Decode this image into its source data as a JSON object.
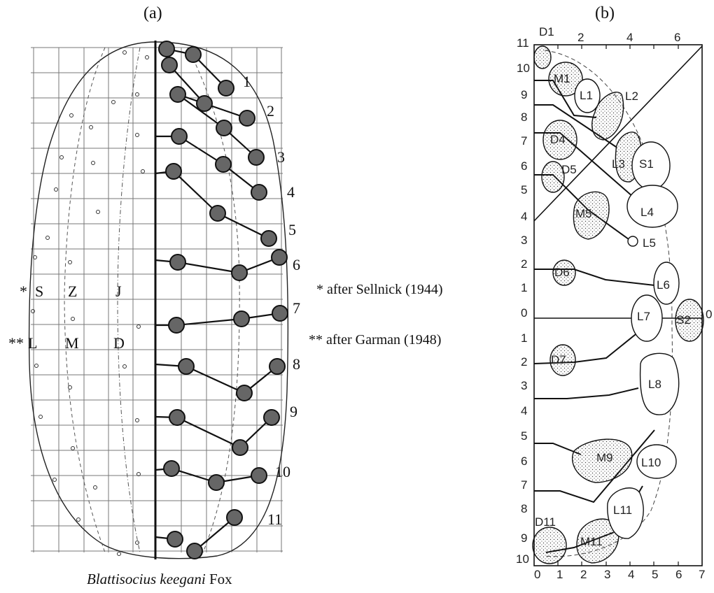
{
  "panel_a": {
    "label": "(a)",
    "row_numbers": [
      "1",
      "2",
      "3",
      "4",
      "5",
      "6",
      "7",
      "8",
      "9",
      "10",
      "11"
    ],
    "zone_row1": {
      "star": "*",
      "S": "S",
      "Z": "Z",
      "J": "J"
    },
    "zone_row2": {
      "star": "**",
      "L": "L",
      "M": "M",
      "D": "D"
    },
    "notes": [
      "* after Sellnick (1944)",
      "** after Garman (1948)"
    ],
    "caption_species": "Blattisocius keegani",
    "caption_author": " Fox"
  },
  "panel_b": {
    "label": "(b)",
    "top_axis": [
      "D1",
      "2",
      "4",
      "6"
    ],
    "left_axis_upper": [
      "11",
      "10",
      "9",
      "8",
      "7",
      "6",
      "5",
      "4",
      "3",
      "2",
      "1",
      "0"
    ],
    "left_axis_lower": [
      "1",
      "2",
      "3",
      "4",
      "5",
      "6",
      "7",
      "8",
      "9",
      "10"
    ],
    "bottom_axis": [
      "0",
      "1",
      "2",
      "3",
      "4",
      "5",
      "6",
      "7"
    ],
    "right_zero": "0",
    "setae": [
      "M1",
      "L1",
      "L2",
      "D4",
      "L3",
      "S1",
      "D5",
      "M5",
      "L4",
      "L5",
      "D6",
      "L6",
      "L7",
      "S2",
      "D7",
      "L8",
      "M9",
      "L10",
      "L11",
      "D11",
      "M11"
    ]
  }
}
